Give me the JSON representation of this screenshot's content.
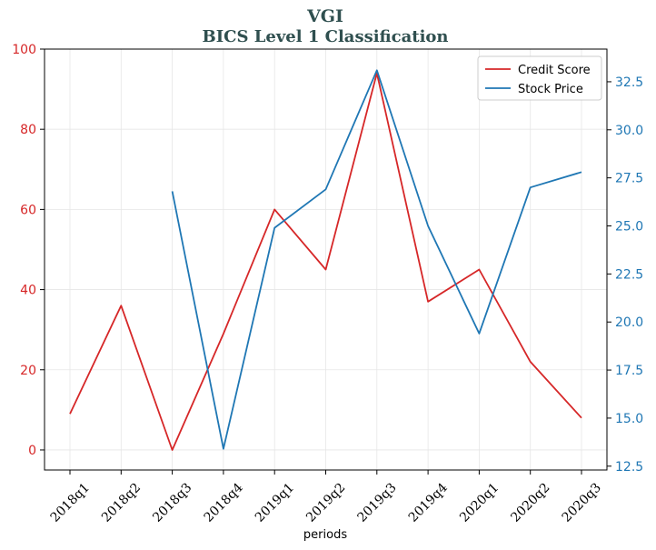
{
  "chart_data": {
    "type": "line",
    "title": "VGI",
    "subtitle": "BICS Level 1 Classification",
    "xlabel": "periods",
    "ylabel": "",
    "y2label": "",
    "categories": [
      "2018q1",
      "2018q2",
      "2018q3",
      "2018q4",
      "2019q1",
      "2019q2",
      "2019q3",
      "2019q4",
      "2020q1",
      "2020q2",
      "2020q3"
    ],
    "series": [
      {
        "name": "Credit Score",
        "axis": "left",
        "color": "#d62728",
        "values": [
          9,
          36,
          0,
          29,
          60,
          45,
          94,
          37,
          45,
          22,
          8
        ]
      },
      {
        "name": "Stock Price",
        "axis": "right",
        "color": "#1f77b4",
        "values": [
          null,
          null,
          26.8,
          13.4,
          24.9,
          26.9,
          33.1,
          25.0,
          19.4,
          27.0,
          27.8
        ]
      }
    ],
    "ylim": [
      -5,
      100
    ],
    "y2lim": [
      12.3,
      34.2
    ],
    "yticks": [
      0,
      20,
      40,
      60,
      80,
      100
    ],
    "y2ticks": [
      "12.5",
      "15.0",
      "17.5",
      "20.0",
      "22.5",
      "25.0",
      "27.5",
      "30.0",
      "32.5"
    ],
    "grid": true,
    "legend_position": "top-right"
  }
}
